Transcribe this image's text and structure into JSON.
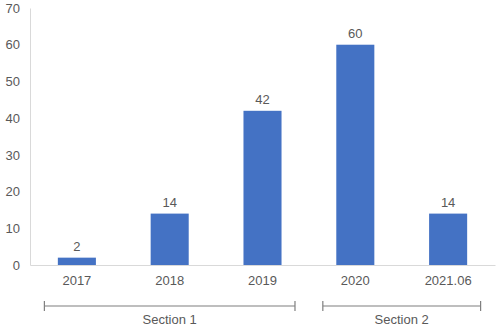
{
  "chart_data": {
    "type": "bar",
    "categories": [
      "2017",
      "2018",
      "2019",
      "2020",
      "2021.06"
    ],
    "values": [
      2,
      14,
      42,
      60,
      14
    ],
    "color": "#4472c4",
    "ylim": [
      0,
      70
    ],
    "yticks": [
      0,
      10,
      20,
      30,
      40,
      50,
      60,
      70
    ],
    "grid": false,
    "data_labels": true,
    "annotations": [
      {
        "text": "Section 1",
        "start": "2017",
        "end": "2019"
      },
      {
        "text": "Section 2",
        "start": "2020",
        "end": "2021.06"
      }
    ]
  }
}
